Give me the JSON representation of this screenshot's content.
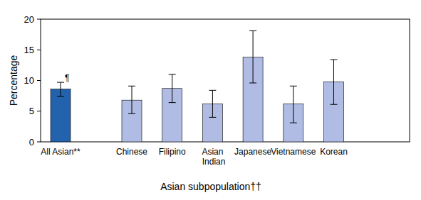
{
  "chart_data": {
    "type": "bar",
    "x_label": "Asian subpopulation††",
    "y_label": "Percentage",
    "categories": [
      "All Asian**",
      "Chinese",
      "Filipino",
      "Asian Indian",
      "Japanese",
      "Vietnamese",
      "Korean"
    ],
    "values": [
      8.6,
      6.8,
      8.7,
      6.2,
      13.8,
      6.2,
      9.8
    ],
    "ci_lower": [
      7.4,
      4.6,
      6.4,
      4.0,
      9.6,
      3.1,
      6.1
    ],
    "ci_upper": [
      9.7,
      9.1,
      11.0,
      8.4,
      18.1,
      9.1,
      13.4
    ],
    "colors": [
      "#2362ad",
      "#b0bce4",
      "#b0bce4",
      "#b0bce4",
      "#b0bce4",
      "#b0bce4",
      "#b0bce4"
    ],
    "annotations": [
      {
        "text": "¶",
        "category": "All Asian**"
      }
    ],
    "ylim": [
      0,
      20
    ],
    "yticks": [
      0,
      5,
      10,
      15,
      20
    ],
    "grid": false
  }
}
